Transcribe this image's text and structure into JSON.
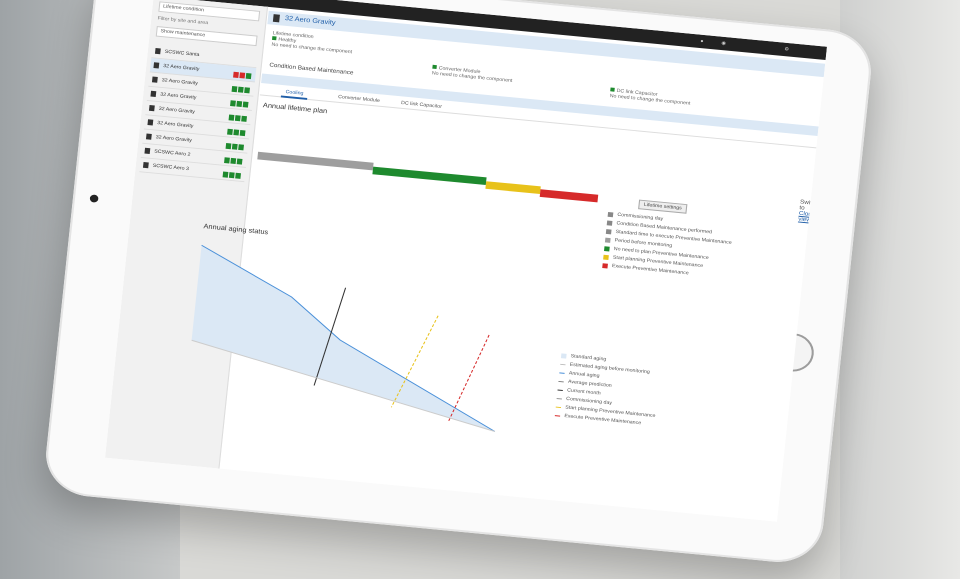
{
  "sidebar": {
    "search_value": "Lifetime condition",
    "text_a": "Filter by site and area",
    "text_b": "Show maintenance",
    "items": [
      {
        "label": "SCSWC Santa"
      },
      {
        "label": "32 Aero Gravity"
      },
      {
        "label": "32 Aero Gravity"
      },
      {
        "label": "32 Aero Gravity"
      },
      {
        "label": "32 Aero Gravity"
      },
      {
        "label": "32 Aero Gravity"
      },
      {
        "label": "32 Aero Gravity"
      },
      {
        "label": "SCSWC Aero 2"
      },
      {
        "label": "SCSWC Aero 3"
      }
    ]
  },
  "header": {
    "title": "32 Aero Gravity",
    "lifetime": "Lifetime condition",
    "status": "Healthy",
    "status_note": "No need to change the component",
    "converter": "Converter Module",
    "converter_note": "No need to change the component",
    "dc_link": "DC link Capacitor",
    "dc_note": "No need to change the component",
    "maintenance": "Condition Based Maintenance"
  },
  "tabs": [
    "Cooling",
    "Converter Module",
    "DC link Capacitor"
  ],
  "annual_plan_title": "Annual lifetime plan",
  "switch_text": "Switch to",
  "switch_link": "Cloud view",
  "lifetime_btn": "Lifetime settings",
  "plan_legend": [
    {
      "label": "Commissioning day",
      "color": "#888888"
    },
    {
      "label": "Condition Based Maintenance performed",
      "color": "#888888"
    },
    {
      "label": "Standard time to execute Preventive Maintenance",
      "color": "#888888"
    },
    {
      "label": "Period before monitoring",
      "color": "#9e9e9e"
    },
    {
      "label": "No need to plan Preventive Maintenance",
      "color": "#1e8a2e"
    },
    {
      "label": "Start planning Preventive Maintenance",
      "color": "#e8c21a"
    },
    {
      "label": "Execute Preventive Maintenance",
      "color": "#d62a2a"
    }
  ],
  "aging_title": "Annual aging status",
  "aging_legend": [
    "Standard aging",
    "Estimated aging before monitoring",
    "Annual aging",
    "Average prediction",
    "Current month",
    "Commissioning day",
    "Start planning Preventive Maintenance",
    "Execute Preventive Maintenance"
  ],
  "colors": {
    "accent": "#1f5ea8",
    "green": "#1e8a2e",
    "yellow": "#e8c21a",
    "red": "#d62a2a",
    "gray": "#9e9e9e",
    "area": "#dbe8f5"
  }
}
